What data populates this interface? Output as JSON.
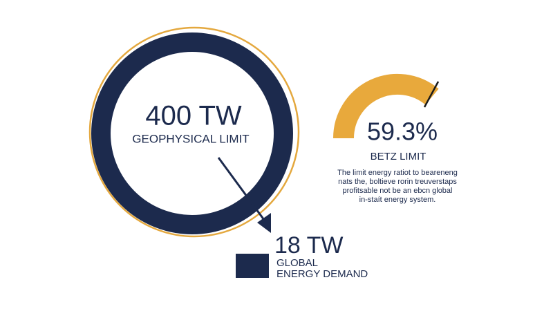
{
  "geophysical": {
    "value": "400 TW",
    "label": "GEOPHYSICAL LIMIT"
  },
  "betz": {
    "value": "59.3%",
    "label": "BETZ LIMIT",
    "description": [
      "The limit energy ratiot to beareneng",
      "nats the, boltieve rorin treuverstaps",
      "profitsable not be an ebcn global",
      "in-staít energy system."
    ]
  },
  "demand": {
    "value": "18 TW",
    "label": [
      "GLOBAL",
      "ENERGY DEMAND"
    ]
  }
}
